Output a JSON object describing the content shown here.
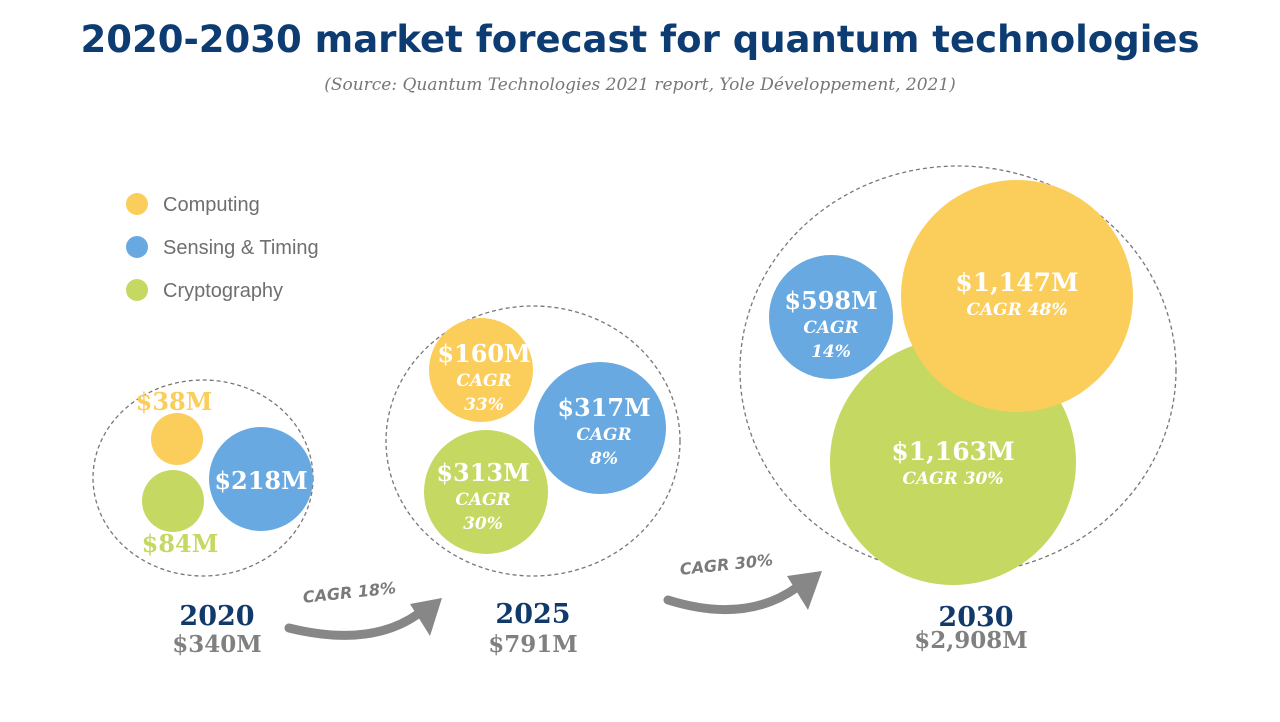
{
  "title": "2020-2030 market forecast for quantum technologies",
  "source": "(Source: Quantum Technologies 2021 report, Yole Développement, 2021)",
  "colors": {
    "title": "#0d3c73",
    "computing": "#fbcd5a",
    "sensing": "#67a9e0",
    "crypto": "#c4d862",
    "year": "#113a6b",
    "total": "#808080",
    "arrow": "#878787",
    "group_border": "#777777",
    "legend_text": "#6f6f6f"
  },
  "legend": [
    {
      "label": "Computing",
      "color_key": "computing"
    },
    {
      "label": "Sensing & Timing",
      "color_key": "sensing"
    },
    {
      "label": "Cryptography",
      "color_key": "crypto"
    }
  ],
  "chart_data": {
    "type": "bubble",
    "title": "2020-2030 market forecast for quantum technologies",
    "unit": "$M",
    "segments": [
      "Computing",
      "Sensing & Timing",
      "Cryptography"
    ],
    "years": [
      {
        "year": "2020",
        "total_label": "$340M",
        "values": [
          {
            "segment": "Computing",
            "value": 38,
            "label": "$38M",
            "cagr_title": "",
            "cagr_value": ""
          },
          {
            "segment": "Sensing & Timing",
            "value": 218,
            "label": "$218M",
            "cagr_title": "",
            "cagr_value": ""
          },
          {
            "segment": "Cryptography",
            "value": 84,
            "label": "$84M",
            "cagr_title": "",
            "cagr_value": ""
          }
        ]
      },
      {
        "year": "2025",
        "total_label": "$791M",
        "values": [
          {
            "segment": "Computing",
            "value": 160,
            "label": "$160M",
            "cagr_title": "CAGR",
            "cagr_value": "33%"
          },
          {
            "segment": "Sensing & Timing",
            "value": 317,
            "label": "$317M",
            "cagr_title": "CAGR",
            "cagr_value": "8%"
          },
          {
            "segment": "Cryptography",
            "value": 313,
            "label": "$313M",
            "cagr_title": "CAGR",
            "cagr_value": "30%"
          }
        ]
      },
      {
        "year": "2030",
        "total_label": "$2,908M",
        "values": [
          {
            "segment": "Computing",
            "value": 1147,
            "label": "$1,147M",
            "cagr_title": "",
            "cagr_value": "CAGR 48%"
          },
          {
            "segment": "Sensing & Timing",
            "value": 598,
            "label": "$598M",
            "cagr_title": "CAGR",
            "cagr_value": "14%"
          },
          {
            "segment": "Cryptography",
            "value": 1163,
            "label": "$1,163M",
            "cagr_title": "",
            "cagr_value": "CAGR 30%"
          }
        ]
      }
    ],
    "transitions": [
      {
        "from": "2020",
        "to": "2025",
        "label": "CAGR 18%"
      },
      {
        "from": "2025",
        "to": "2030",
        "label": "CAGR 30%"
      }
    ]
  }
}
